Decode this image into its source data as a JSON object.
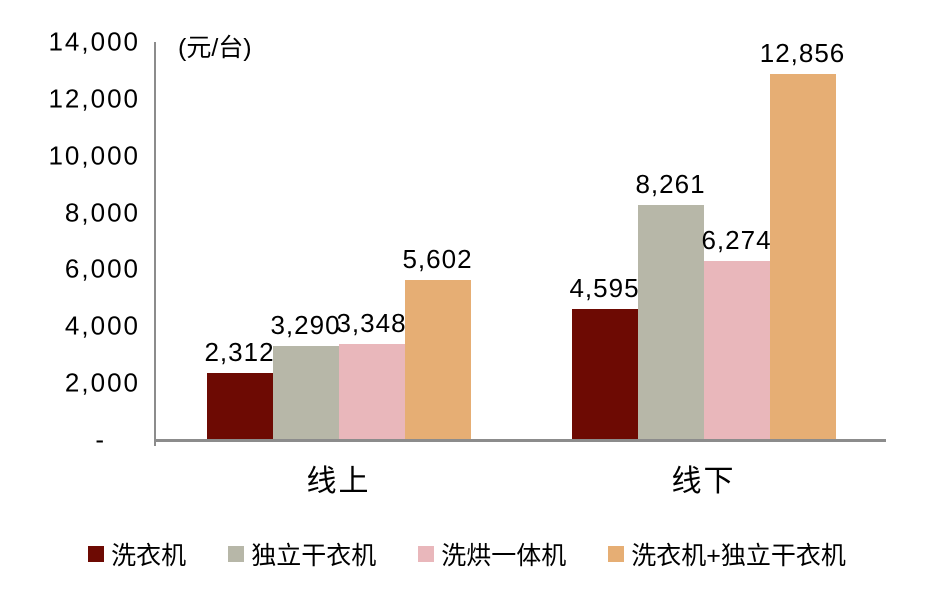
{
  "chart_data": {
    "type": "bar",
    "title": "",
    "unit_label": "(元/台)",
    "categories": [
      "线上",
      "线下"
    ],
    "series": [
      {
        "name": "洗衣机",
        "color": "#6d0a03",
        "values": [
          2312,
          4595
        ]
      },
      {
        "name": "独立干衣机",
        "color": "#b7b7a8",
        "values": [
          3290,
          8261
        ]
      },
      {
        "name": "洗烘一体机",
        "color": "#e9b7bb",
        "values": [
          3348,
          6274
        ]
      },
      {
        "name": "洗衣机+独立干衣机",
        "color": "#e6ae74",
        "values": [
          5602,
          12856
        ]
      }
    ],
    "ylim": [
      0,
      14000
    ],
    "y_tick_labels": [
      "14,000",
      "12,000",
      "10,000",
      "8,000",
      "6,000",
      "4,000",
      "2,000",
      "-"
    ],
    "y_tick_values": [
      14000,
      12000,
      10000,
      8000,
      6000,
      4000,
      2000,
      0
    ],
    "data_labels_shown": true,
    "grid": false,
    "legend_position": "bottom",
    "colors": {
      "axis_line": "#8c8c8c",
      "text": "#000000",
      "background": "#ffffff"
    }
  }
}
